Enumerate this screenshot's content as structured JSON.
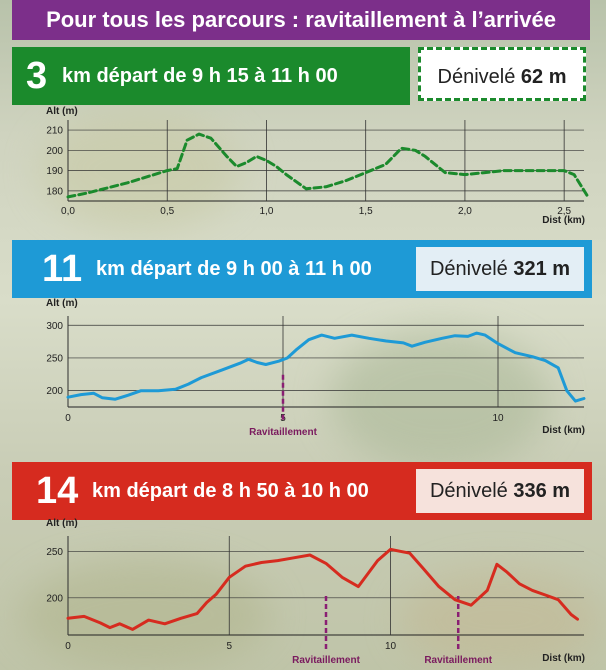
{
  "header": {
    "title": "Pour tous les parcours : ravitaillement à l’arrivée"
  },
  "courses": [
    {
      "km": "3",
      "unit": "km",
      "text": "départ de 9 h 15 à 11 h 00",
      "deniv_label": "Dénivelé",
      "deniv_value": "62 m",
      "color": "#1b8a2c"
    },
    {
      "km": "11",
      "unit": "km",
      "text": "départ de 9 h 00 à 11 h 00",
      "deniv_label": "Dénivelé",
      "deniv_value": "321 m",
      "color": "#1e9ad6"
    },
    {
      "km": "14",
      "unit": "km",
      "text": "départ de 8 h 50 à 10 h 00",
      "deniv_label": "Dénivelé",
      "deniv_value": "336 m",
      "color": "#d62b1f"
    }
  ],
  "chart_data": [
    {
      "type": "line",
      "series": [
        {
          "values": [
            [
              0,
              177
            ],
            [
              0.1,
              179
            ],
            [
              0.3,
              184
            ],
            [
              0.5,
              190
            ],
            [
              0.55,
              191
            ],
            [
              0.6,
              205
            ],
            [
              0.66,
              208
            ],
            [
              0.72,
              206
            ],
            [
              0.8,
              197
            ],
            [
              0.85,
              192
            ],
            [
              0.9,
              194
            ],
            [
              0.95,
              197
            ],
            [
              1.0,
              195
            ],
            [
              1.05,
              192
            ],
            [
              1.1,
              188
            ],
            [
              1.2,
              181
            ],
            [
              1.3,
              182
            ],
            [
              1.4,
              185
            ],
            [
              1.5,
              189
            ],
            [
              1.6,
              193
            ],
            [
              1.68,
              201
            ],
            [
              1.75,
              200
            ],
            [
              1.8,
              197
            ],
            [
              1.9,
              189
            ],
            [
              2.0,
              188
            ],
            [
              2.1,
              189
            ],
            [
              2.2,
              190
            ],
            [
              2.3,
              190
            ],
            [
              2.4,
              190
            ],
            [
              2.5,
              190
            ],
            [
              2.55,
              188
            ],
            [
              2.62,
              177
            ]
          ],
          "style": "dashed",
          "color": "#1b8a2c"
        }
      ],
      "ylabel": "Alt (m)",
      "xlabel": "Dist (km)",
      "xlim": [
        0,
        2.6
      ],
      "ylim": [
        175,
        212
      ],
      "xticks": [
        "0,0",
        "0,5",
        "1,0",
        "1,5",
        "2,0",
        "2,5"
      ],
      "yticks": [
        "180",
        "190",
        "200",
        "210"
      ],
      "grid": "y"
    },
    {
      "type": "line",
      "series": [
        {
          "values": [
            [
              0,
              190
            ],
            [
              0.3,
              194
            ],
            [
              0.6,
              196
            ],
            [
              0.8,
              189
            ],
            [
              1.1,
              187
            ],
            [
              1.4,
              193
            ],
            [
              1.7,
              200
            ],
            [
              2.1,
              200
            ],
            [
              2.5,
              202
            ],
            [
              2.8,
              210
            ],
            [
              3.1,
              220
            ],
            [
              3.6,
              232
            ],
            [
              4.0,
              242
            ],
            [
              4.2,
              248
            ],
            [
              4.4,
              243
            ],
            [
              4.6,
              240
            ],
            [
              4.9,
              245
            ],
            [
              5.1,
              250
            ],
            [
              5.3,
              262
            ],
            [
              5.6,
              278
            ],
            [
              5.9,
              285
            ],
            [
              6.2,
              280
            ],
            [
              6.6,
              285
            ],
            [
              7.0,
              280
            ],
            [
              7.4,
              276
            ],
            [
              7.8,
              273
            ],
            [
              8.0,
              268
            ],
            [
              8.3,
              274
            ],
            [
              8.7,
              280
            ],
            [
              9.0,
              284
            ],
            [
              9.3,
              283
            ],
            [
              9.5,
              288
            ],
            [
              9.7,
              285
            ],
            [
              10.0,
              272
            ],
            [
              10.4,
              258
            ],
            [
              10.8,
              252
            ],
            [
              11.1,
              246
            ],
            [
              11.4,
              235
            ],
            [
              11.6,
              200
            ],
            [
              11.8,
              184
            ],
            [
              12.0,
              188
            ]
          ],
          "color": "#1e9ad6"
        }
      ],
      "ylabel": "Alt (m)",
      "xlabel": "Dist (km)",
      "xlim": [
        0,
        12
      ],
      "ylim": [
        175,
        305
      ],
      "xticks": [
        "0",
        "5",
        "10"
      ],
      "yticks": [
        "200",
        "250",
        "300"
      ],
      "grid": "y",
      "annotations": [
        {
          "x": 5,
          "label": "Ravitaillement"
        }
      ]
    },
    {
      "type": "line",
      "series": [
        {
          "values": [
            [
              0,
              178
            ],
            [
              0.5,
              180
            ],
            [
              1.0,
              173
            ],
            [
              1.3,
              168
            ],
            [
              1.6,
              172
            ],
            [
              2.0,
              166
            ],
            [
              2.5,
              176
            ],
            [
              3.0,
              172
            ],
            [
              3.5,
              178
            ],
            [
              4.0,
              183
            ],
            [
              4.3,
              195
            ],
            [
              4.6,
              204
            ],
            [
              5.0,
              222
            ],
            [
              5.5,
              234
            ],
            [
              6.0,
              238
            ],
            [
              6.5,
              240
            ],
            [
              7.0,
              243
            ],
            [
              7.5,
              246
            ],
            [
              8.0,
              237
            ],
            [
              8.5,
              222
            ],
            [
              9.0,
              212
            ],
            [
              9.6,
              240
            ],
            [
              10.0,
              252
            ],
            [
              10.3,
              250
            ],
            [
              10.6,
              248
            ],
            [
              11.0,
              232
            ],
            [
              11.5,
              212
            ],
            [
              12.0,
              198
            ],
            [
              12.5,
              192
            ],
            [
              13.0,
              208
            ],
            [
              13.3,
              236
            ],
            [
              13.6,
              228
            ],
            [
              14.0,
              215
            ],
            [
              14.4,
              208
            ],
            [
              14.8,
              203
            ],
            [
              15.2,
              198
            ],
            [
              15.6,
              182
            ],
            [
              15.8,
              177
            ]
          ],
          "color": "#d62b1f"
        }
      ],
      "ylabel": "Alt (m)",
      "xlabel": "Dist (km)",
      "xlim": [
        0,
        16
      ],
      "ylim": [
        160,
        260
      ],
      "xticks": [
        "0",
        "5",
        "10"
      ],
      "yticks": [
        "200",
        "250"
      ],
      "grid": "y",
      "annotations": [
        {
          "x": 8,
          "label": "Ravitaillement"
        },
        {
          "x": 12.1,
          "label": "Ravitaillement"
        }
      ]
    }
  ]
}
